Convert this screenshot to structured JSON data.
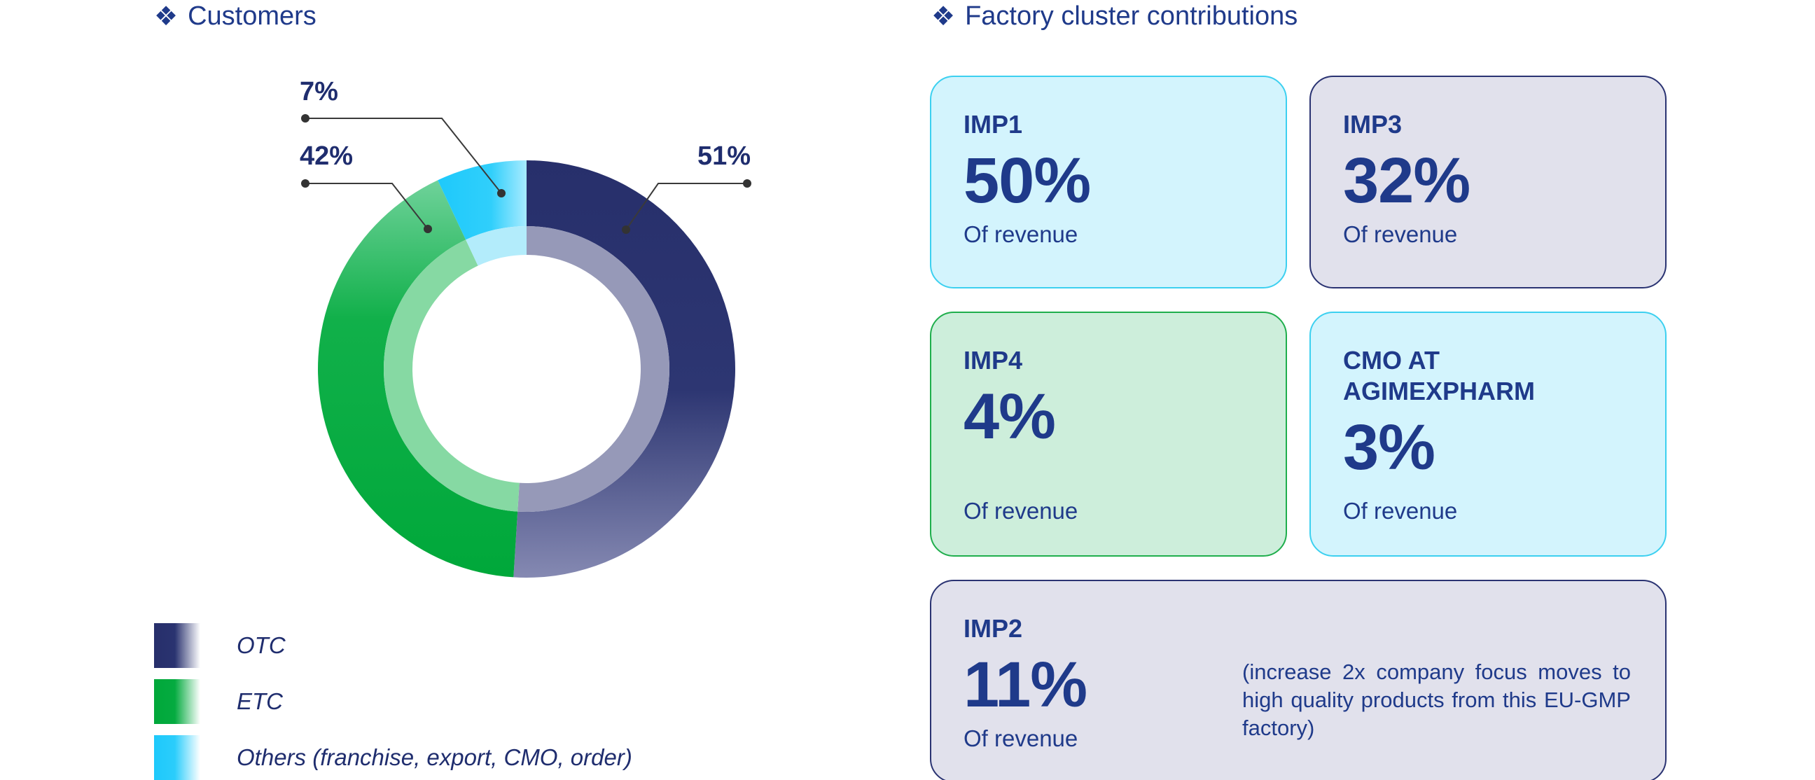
{
  "sections": {
    "customers_title": "Customers",
    "factory_title": "Factory cluster contributions"
  },
  "icons": {
    "section_bullet": "diamond-cluster-icon"
  },
  "colors": {
    "otc": "#2a3370",
    "etc": "#00ab3c",
    "others": "#2bcdfb",
    "card_cyan_bg": "#d3f4fd",
    "card_grey_bg": "#e1e1ec",
    "card_green_bg": "#cdeedb"
  },
  "chart_data": {
    "type": "pie",
    "donut": true,
    "title": "Customers",
    "slices": [
      {
        "name": "OTC",
        "value": 51,
        "label": "51%",
        "color": "#2a3370"
      },
      {
        "name": "ETC",
        "value": 42,
        "label": "42%",
        "color": "#00ab3c"
      },
      {
        "name": "Others (franchise, export, CMO, order)",
        "value": 7,
        "label": "7%",
        "color": "#2bcdfb"
      }
    ],
    "legend_position": "bottom-left"
  },
  "legend": [
    {
      "label": "OTC"
    },
    {
      "label": "ETC"
    },
    {
      "label": "Others (franchise, export, CMO, order)"
    }
  ],
  "cards": {
    "imp1": {
      "name": "IMP1",
      "value": "50%",
      "sub": "Of revenue"
    },
    "imp3": {
      "name": "IMP3",
      "value": "32%",
      "sub": "Of revenue"
    },
    "imp4": {
      "name": "IMP4",
      "value": "4%",
      "sub": "Of revenue"
    },
    "cmo": {
      "name": "CMO AT AGIMEXPHARM",
      "value": "3%",
      "sub": "Of revenue"
    },
    "imp2": {
      "name": "IMP2",
      "value": "11%",
      "sub": "Of revenue",
      "note": "(increase 2x company focus moves to high quality products from this EU-GMP factory)"
    }
  }
}
